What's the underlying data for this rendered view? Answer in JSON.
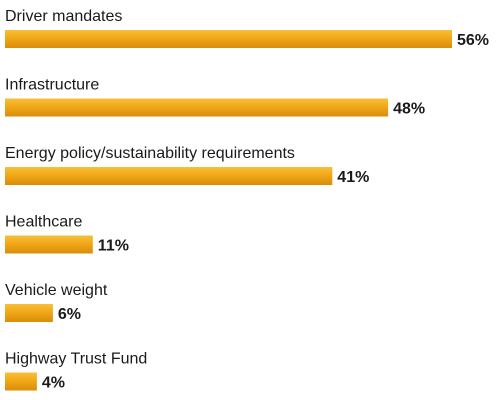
{
  "chart_data": {
    "type": "bar",
    "orientation": "horizontal",
    "categories": [
      "Driver mandates",
      "Infrastructure",
      "Energy policy/sustainability requirements",
      "Healthcare",
      "Vehicle weight",
      "Highway Trust Fund"
    ],
    "values": [
      56,
      48,
      41,
      11,
      6,
      4
    ],
    "value_labels": [
      "56%",
      "48%",
      "41%",
      "11%",
      "6%",
      "4%"
    ],
    "unit": "%",
    "title": "",
    "xlabel": "",
    "ylabel": "",
    "xlim": [
      0,
      56
    ],
    "grid": false,
    "legend": "none",
    "bar_color": "#f0a818",
    "bar_color_dark": "#d98c0a",
    "bar_color_light": "#f8bf38"
  }
}
